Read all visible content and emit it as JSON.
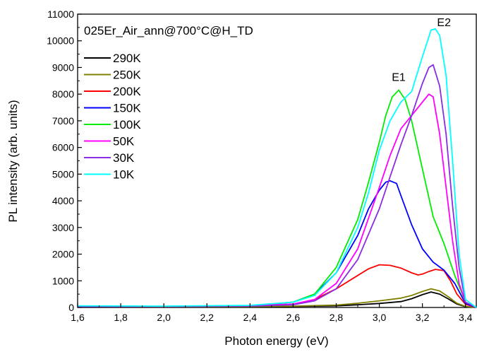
{
  "chart_data": {
    "type": "line",
    "title": "025Er_Air_ann@700°C@H_TD",
    "xlabel": "Photon energy (eV)",
    "ylabel": "PL intensity (arb. units)",
    "xlim": [
      1.6,
      3.45
    ],
    "ylim": [
      0,
      11000
    ],
    "xticks": [
      "1,6",
      "1,8",
      "2,0",
      "2,2",
      "2,4",
      "2,6",
      "2,8",
      "3,0",
      "3,2",
      "3,4"
    ],
    "xtick_values": [
      1.6,
      1.8,
      2.0,
      2.2,
      2.4,
      2.6,
      2.8,
      3.0,
      3.2,
      3.4
    ],
    "yticks": [
      "0",
      "1000",
      "2000",
      "3000",
      "4000",
      "5000",
      "6000",
      "7000",
      "8000",
      "9000",
      "10000",
      "11000"
    ],
    "ytick_values": [
      0,
      1000,
      2000,
      3000,
      4000,
      5000,
      6000,
      7000,
      8000,
      9000,
      10000,
      11000
    ],
    "grid": false,
    "legend_position": "top-left",
    "annotations": [
      {
        "text": "E1",
        "x": 3.09,
        "y": 8500
      },
      {
        "text": "E2",
        "x": 3.3,
        "y": 10550
      }
    ],
    "series": [
      {
        "name": "290K",
        "color": "#000000",
        "x": [
          1.6,
          2.0,
          2.4,
          2.6,
          2.8,
          2.9,
          3.0,
          3.1,
          3.15,
          3.2,
          3.24,
          3.28,
          3.32,
          3.36,
          3.4,
          3.45
        ],
        "y": [
          40,
          30,
          30,
          40,
          60,
          100,
          150,
          220,
          330,
          480,
          580,
          500,
          320,
          130,
          30,
          0
        ]
      },
      {
        "name": "250K",
        "color": "#808000",
        "x": [
          1.6,
          2.0,
          2.4,
          2.6,
          2.8,
          2.9,
          3.0,
          3.1,
          3.15,
          3.2,
          3.24,
          3.28,
          3.32,
          3.36,
          3.4,
          3.45
        ],
        "y": [
          40,
          30,
          35,
          50,
          90,
          160,
          250,
          350,
          450,
          600,
          700,
          620,
          400,
          160,
          40,
          0
        ]
      },
      {
        "name": "200K",
        "color": "#ff0000",
        "x": [
          1.6,
          2.0,
          2.4,
          2.6,
          2.7,
          2.8,
          2.9,
          2.95,
          3.0,
          3.05,
          3.1,
          3.15,
          3.18,
          3.2,
          3.23,
          3.26,
          3.3,
          3.33,
          3.36,
          3.4,
          3.45
        ],
        "y": [
          40,
          40,
          60,
          120,
          300,
          700,
          1200,
          1450,
          1600,
          1580,
          1480,
          1300,
          1220,
          1250,
          1350,
          1430,
          1380,
          1000,
          500,
          120,
          0
        ]
      },
      {
        "name": "150K",
        "color": "#0000ff",
        "x": [
          1.6,
          2.0,
          2.4,
          2.6,
          2.7,
          2.8,
          2.9,
          2.95,
          3.0,
          3.03,
          3.05,
          3.08,
          3.1,
          3.15,
          3.2,
          3.25,
          3.3,
          3.35,
          3.4,
          3.45
        ],
        "y": [
          40,
          40,
          60,
          200,
          500,
          1300,
          2700,
          3700,
          4400,
          4700,
          4750,
          4650,
          4200,
          3100,
          2200,
          1700,
          1400,
          900,
          150,
          0
        ]
      },
      {
        "name": "100K",
        "color": "#00ee00",
        "x": [
          1.6,
          2.0,
          2.4,
          2.6,
          2.7,
          2.8,
          2.9,
          2.95,
          3.0,
          3.03,
          3.06,
          3.09,
          3.12,
          3.15,
          3.2,
          3.25,
          3.3,
          3.35,
          3.4,
          3.45
        ],
        "y": [
          50,
          40,
          70,
          200,
          500,
          1500,
          3300,
          4700,
          6200,
          7200,
          7900,
          8150,
          7800,
          7000,
          5200,
          3400,
          2400,
          1200,
          200,
          0
        ]
      },
      {
        "name": "50K",
        "color": "#ff00ff",
        "x": [
          1.6,
          2.0,
          2.4,
          2.6,
          2.7,
          2.8,
          2.9,
          3.0,
          3.05,
          3.1,
          3.15,
          3.2,
          3.23,
          3.25,
          3.28,
          3.31,
          3.34,
          3.37,
          3.4,
          3.45
        ],
        "y": [
          40,
          40,
          60,
          130,
          300,
          900,
          2200,
          4500,
          5700,
          6700,
          7200,
          7700,
          8000,
          7900,
          6500,
          4500,
          2500,
          900,
          200,
          0
        ]
      },
      {
        "name": "30K",
        "color": "#8b2be2",
        "x": [
          1.6,
          2.0,
          2.4,
          2.6,
          2.7,
          2.8,
          2.9,
          3.0,
          3.05,
          3.1,
          3.15,
          3.2,
          3.23,
          3.25,
          3.28,
          3.31,
          3.34,
          3.37,
          3.4,
          3.45
        ],
        "y": [
          40,
          40,
          50,
          100,
          250,
          700,
          1800,
          3700,
          4900,
          6100,
          7200,
          8400,
          9000,
          9100,
          8300,
          6500,
          3800,
          1500,
          200,
          0
        ]
      },
      {
        "name": "10K",
        "color": "#00ffff",
        "x": [
          1.6,
          2.0,
          2.4,
          2.6,
          2.7,
          2.8,
          2.9,
          2.95,
          3.0,
          3.05,
          3.1,
          3.15,
          3.2,
          3.24,
          3.26,
          3.28,
          3.31,
          3.34,
          3.37,
          3.4,
          3.45
        ],
        "y": [
          60,
          50,
          80,
          200,
          450,
          1300,
          3000,
          4300,
          5900,
          7000,
          7700,
          8100,
          9400,
          10400,
          10450,
          10200,
          8700,
          5500,
          2000,
          300,
          0
        ]
      }
    ]
  }
}
